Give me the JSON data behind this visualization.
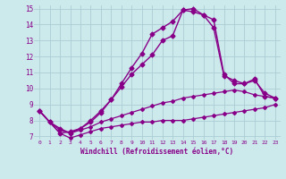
{
  "background_color": "#cce9ec",
  "grid_color": "#aacdd4",
  "line_color": "#880088",
  "xlabel": "Windchill (Refroidissement éolien,°C)",
  "xlabel_color": "#880088",
  "xlim": [
    -0.5,
    23.5
  ],
  "ylim": [
    6.8,
    15.2
  ],
  "yticks": [
    7,
    8,
    9,
    10,
    11,
    12,
    13,
    14,
    15
  ],
  "xticks": [
    0,
    1,
    2,
    3,
    4,
    5,
    6,
    7,
    8,
    9,
    10,
    11,
    12,
    13,
    14,
    15,
    16,
    17,
    18,
    19,
    20,
    21,
    22,
    23
  ],
  "series": [
    {
      "x": [
        0,
        1,
        2,
        3,
        4,
        5,
        6,
        7,
        8,
        9,
        10,
        11,
        12,
        13,
        14,
        15,
        16,
        17,
        18,
        19,
        20,
        21,
        22,
        23
      ],
      "y": [
        8.6,
        7.9,
        7.2,
        6.9,
        7.1,
        7.3,
        7.5,
        7.6,
        7.7,
        7.8,
        7.9,
        7.9,
        8.0,
        8.0,
        8.0,
        8.1,
        8.2,
        8.3,
        8.4,
        8.5,
        8.6,
        8.7,
        8.8,
        9.0
      ],
      "marker": "D",
      "markersize": 2.0,
      "linewidth": 0.9
    },
    {
      "x": [
        0,
        1,
        2,
        3,
        4,
        5,
        6,
        7,
        8,
        9,
        10,
        11,
        12,
        13,
        14,
        15,
        16,
        17,
        18,
        19,
        20,
        21,
        22,
        23
      ],
      "y": [
        8.6,
        7.9,
        7.4,
        7.2,
        7.4,
        7.6,
        7.9,
        8.1,
        8.3,
        8.5,
        8.7,
        8.9,
        9.1,
        9.2,
        9.4,
        9.5,
        9.6,
        9.7,
        9.8,
        9.9,
        9.8,
        9.6,
        9.5,
        9.4
      ],
      "marker": "D",
      "markersize": 2.0,
      "linewidth": 0.9
    },
    {
      "x": [
        0,
        1,
        2,
        3,
        4,
        5,
        6,
        7,
        8,
        9,
        10,
        11,
        12,
        13,
        14,
        15,
        16,
        17,
        18,
        19,
        20,
        21,
        22,
        23
      ],
      "y": [
        8.6,
        7.9,
        7.2,
        7.3,
        7.5,
        8.0,
        8.6,
        9.3,
        10.1,
        10.9,
        11.5,
        12.1,
        13.0,
        13.3,
        14.9,
        14.8,
        14.6,
        13.8,
        10.8,
        10.5,
        10.3,
        10.6,
        9.5,
        9.4
      ],
      "marker": "D",
      "markersize": 2.5,
      "linewidth": 1.0
    },
    {
      "x": [
        0,
        1,
        2,
        3,
        4,
        5,
        6,
        7,
        8,
        9,
        10,
        11,
        12,
        13,
        14,
        15,
        16,
        17,
        18,
        19,
        20,
        21,
        22,
        23
      ],
      "y": [
        8.6,
        7.9,
        7.5,
        7.2,
        7.5,
        7.9,
        8.5,
        9.3,
        10.3,
        11.3,
        12.2,
        13.4,
        13.8,
        14.2,
        14.9,
        15.0,
        14.6,
        14.3,
        10.9,
        10.3,
        10.3,
        10.5,
        9.7,
        9.4
      ],
      "marker": "D",
      "markersize": 2.5,
      "linewidth": 1.0
    }
  ]
}
